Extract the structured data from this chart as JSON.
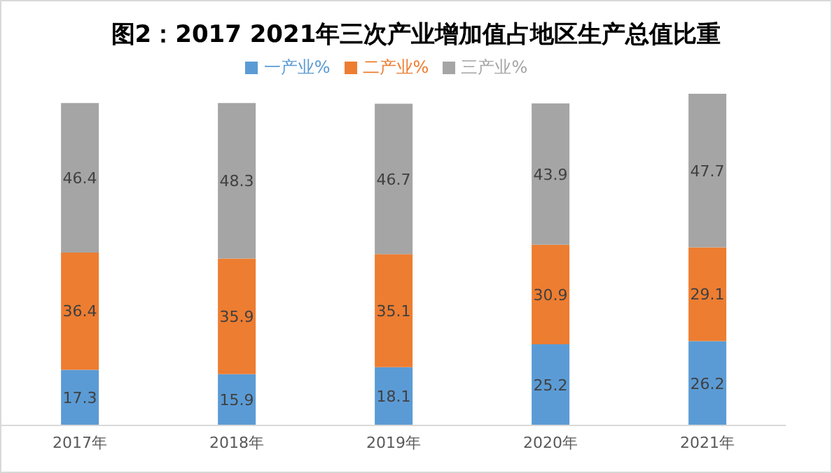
{
  "chart_data": {
    "type": "bar",
    "title": "图2：2017 2021年三次产业增加值占地区生产总值比重",
    "categories": [
      "2017年",
      "2018年",
      "2019年",
      "2020年",
      "2021年"
    ],
    "stacked": true,
    "data_labels": true,
    "legend": "top",
    "grid": false,
    "tick_labels": "x",
    "series": [
      {
        "name": "一产业%",
        "color": "#5b9bd5",
        "values": [
          17.3,
          15.9,
          18.1,
          25.2,
          26.2
        ]
      },
      {
        "name": "二产业%",
        "color": "#ed7d31",
        "values": [
          36.4,
          35.9,
          35.1,
          30.9,
          29.1
        ]
      },
      {
        "name": "三产业%",
        "color": "#a5a5a5",
        "values": [
          46.4,
          48.3,
          46.7,
          43.9,
          47.7
        ]
      }
    ]
  }
}
